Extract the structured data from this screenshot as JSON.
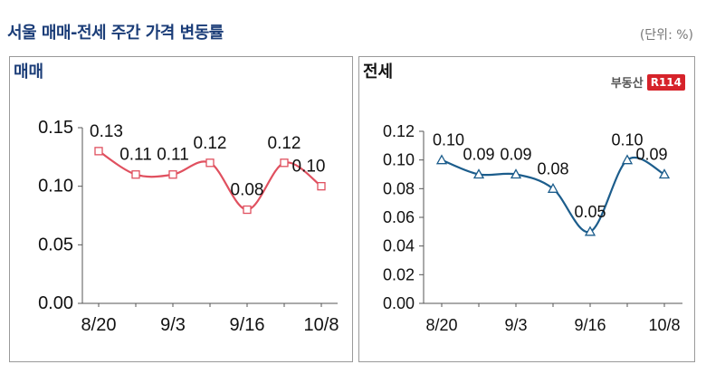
{
  "header": {
    "title": "서울 매매-전세 주간 가격 변동률",
    "unit": "(단위: %)"
  },
  "brand": {
    "text": "부동산",
    "badge": "R114"
  },
  "chart_data": [
    {
      "type": "line",
      "title": "매매",
      "x_labels": [
        "8/20",
        "",
        "9/3",
        "",
        "9/16",
        "",
        "10/8"
      ],
      "values": [
        0.13,
        0.11,
        0.11,
        0.12,
        0.08,
        0.12,
        0.1
      ],
      "data_labels": [
        "0.13",
        "0.11",
        "0.11",
        "0.12",
        "0.08",
        "0.12",
        "0.10"
      ],
      "ylim": [
        0.0,
        0.15
      ],
      "yticks": [
        "0.00",
        "0.05",
        "0.10",
        "0.15"
      ],
      "colors": {
        "line": "#e0505f",
        "marker": "#e0505f"
      },
      "marker": "square",
      "smooth": true
    },
    {
      "type": "line",
      "title": "전세",
      "x_labels": [
        "8/20",
        "",
        "9/3",
        "",
        "9/16",
        "",
        "10/8"
      ],
      "values": [
        0.1,
        0.09,
        0.09,
        0.08,
        0.05,
        0.1,
        0.09
      ],
      "data_labels": [
        "0.10",
        "0.09",
        "0.09",
        "0.08",
        "0.05",
        "0.10",
        "0.09"
      ],
      "ylim": [
        0.0,
        0.12
      ],
      "yticks": [
        "0.00",
        "0.02",
        "0.04",
        "0.06",
        "0.08",
        "0.10",
        "0.12"
      ],
      "colors": {
        "line": "#1c5d8c",
        "marker": "#1c5d8c"
      },
      "marker": "triangle",
      "smooth": true
    }
  ]
}
